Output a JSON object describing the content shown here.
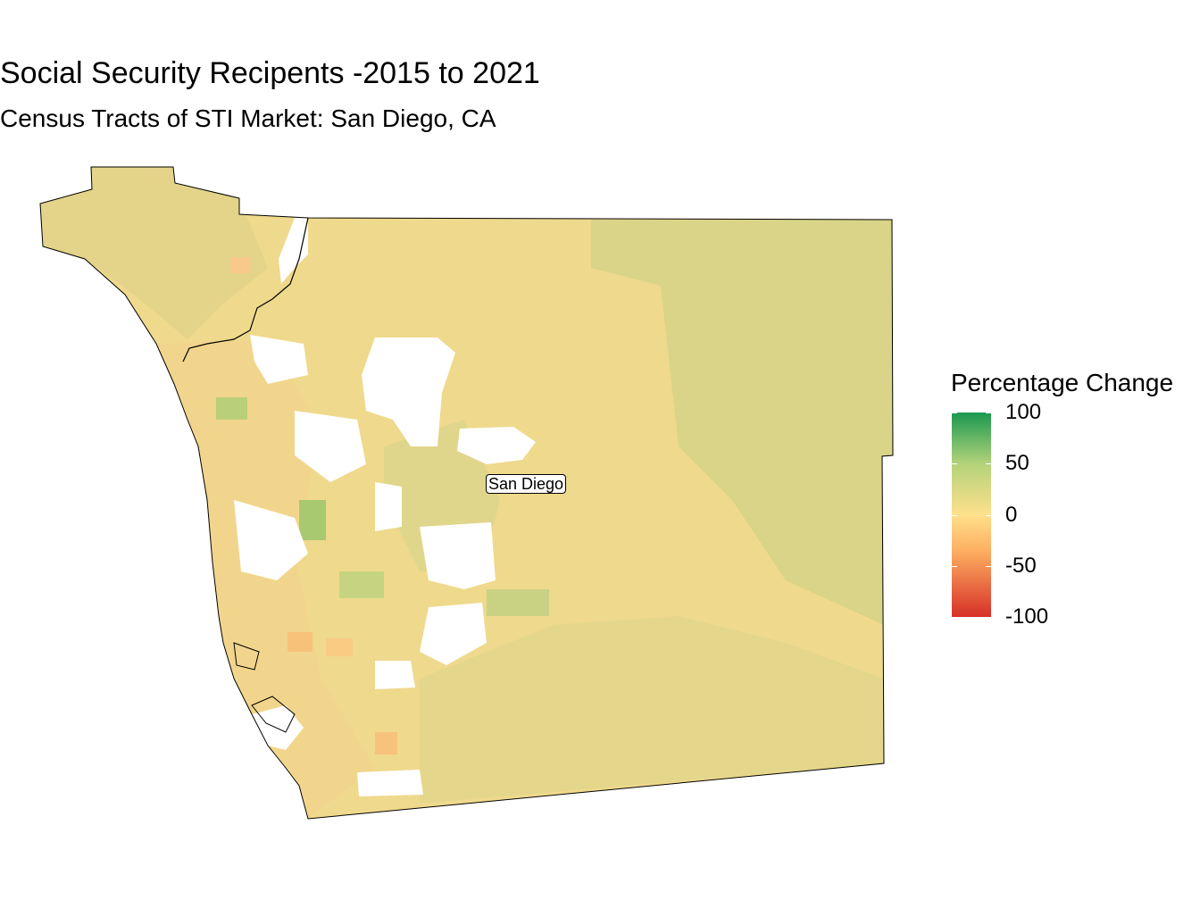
{
  "title": "Social Security Recipents -2015 to 2021",
  "subtitle": "Census Tracts of STI Market: San Diego, CA",
  "map": {
    "region": "San Diego County, CA",
    "unit": "census tract",
    "place_label": "San Diego",
    "no_data_color": "#ffffff",
    "boundary_color": "#000000"
  },
  "legend": {
    "title": "Percentage Change",
    "min": -100,
    "max": 100,
    "ticks": [
      "100",
      "50",
      "0",
      "-50",
      "-100"
    ],
    "tick_values": [
      100,
      50,
      0,
      -50,
      -100
    ],
    "palette": {
      "high": "#1a9850",
      "mid_high": "#b3d37a",
      "mid": "#fee08b",
      "mid_low": "#fdae61",
      "low": "#d73027"
    }
  }
}
